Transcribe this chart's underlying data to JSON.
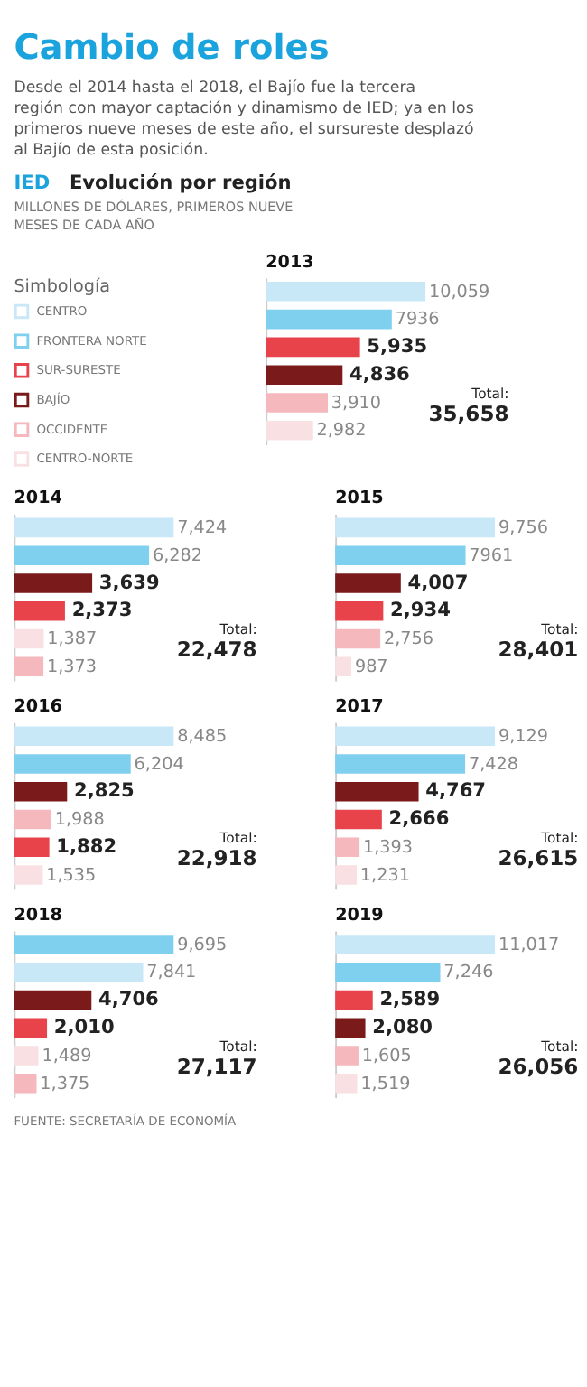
{
  "chart_data": [
    {
      "type": "other",
      "title": "Cambio de roles",
      "subtitle": "Desde el 2014 hasta el 2018, el Bajío fue la tercera región con mayor captación y dinamismo de IED; ya en los primeros nueve meses de este año, el sursureste desplazó al Bajío de esta posición.",
      "annotations": [
        "IED",
        "Evolución por región",
        "MILLONES DE DÓLARES, PRIMEROS NUEVE MESES DE CADA AÑO"
      ]
    },
    {
      "type": "other",
      "legend": "left",
      "legend_title": "Simbología",
      "series": [
        {
          "name": "CENTRO",
          "color": "#c9e8f7"
        },
        {
          "name": "FRONTERA NORTE",
          "color": "#7fd0ef"
        },
        {
          "name": "SUR-SURESTE",
          "color": "#e8434a"
        },
        {
          "name": "BAJÍO",
          "color": "#7a1a1a"
        },
        {
          "name": "OCCIDENTE",
          "color": "#f4b8bd"
        },
        {
          "name": "CENTRO-NORTE",
          "color": "#f9e1e3"
        }
      ]
    },
    {
      "type": "bar",
      "orientation": "horizontal",
      "title": "2013",
      "categories": [
        null,
        null,
        null,
        null,
        null,
        null
      ],
      "values": [
        10059,
        7936,
        5935,
        4836,
        3910,
        2982
      ],
      "value_labels": [
        "10,059",
        "7936",
        "5,935",
        "4,836",
        "3,910",
        "2,982"
      ],
      "colors": [
        "#c9e8f7",
        "#7fd0ef",
        "#e8434a",
        "#7a1a1a",
        "#f4b8bd",
        "#f9e1e3"
      ],
      "annotations": [
        "Total:",
        "35,658"
      ]
    },
    {
      "type": "bar",
      "orientation": "horizontal",
      "title": "2014",
      "categories": [
        null,
        null,
        null,
        null,
        null,
        null
      ],
      "values": [
        7424,
        6282,
        3639,
        2373,
        1387,
        1373
      ],
      "value_labels": [
        "7,424",
        "6,282",
        "3,639",
        "2,373",
        "1,387",
        "1,373"
      ],
      "colors": [
        "#c9e8f7",
        "#7fd0ef",
        "#7a1a1a",
        "#e8434a",
        "#f9e1e3",
        "#f4b8bd"
      ],
      "annotations": [
        "Total:",
        "22,478"
      ]
    },
    {
      "type": "bar",
      "orientation": "horizontal",
      "title": "2015",
      "categories": [
        null,
        null,
        null,
        null,
        null,
        null
      ],
      "values": [
        9756,
        7961,
        4007,
        2934,
        2756,
        987
      ],
      "value_labels": [
        "9,756",
        "7961",
        "4,007",
        "2,934",
        "2,756",
        "987"
      ],
      "colors": [
        "#c9e8f7",
        "#7fd0ef",
        "#7a1a1a",
        "#e8434a",
        "#f4b8bd",
        "#f9e1e3"
      ],
      "annotations": [
        "Total:",
        "28,401"
      ]
    },
    {
      "type": "bar",
      "orientation": "horizontal",
      "title": "2016",
      "categories": [
        null,
        null,
        null,
        null,
        null,
        null
      ],
      "values": [
        8485,
        6204,
        2825,
        1988,
        1882,
        1535
      ],
      "value_labels": [
        "8,485",
        "6,204",
        "2,825",
        "1,988",
        "1,882",
        "1,535"
      ],
      "colors": [
        "#c9e8f7",
        "#7fd0ef",
        "#7a1a1a",
        "#f4b8bd",
        "#e8434a",
        "#f9e1e3"
      ],
      "annotations": [
        "Total:",
        "22,918"
      ]
    },
    {
      "type": "bar",
      "orientation": "horizontal",
      "title": "2017",
      "categories": [
        null,
        null,
        null,
        null,
        null,
        null
      ],
      "values": [
        9129,
        7428,
        4767,
        2666,
        1393,
        1231
      ],
      "value_labels": [
        "9,129",
        "7,428",
        "4,767",
        "2,666",
        "1,393",
        "1,231"
      ],
      "colors": [
        "#c9e8f7",
        "#7fd0ef",
        "#7a1a1a",
        "#e8434a",
        "#f4b8bd",
        "#f9e1e3"
      ],
      "annotations": [
        "Total:",
        "26,615"
      ]
    },
    {
      "type": "bar",
      "orientation": "horizontal",
      "title": "2018",
      "categories": [
        null,
        null,
        null,
        null,
        null,
        null
      ],
      "values": [
        9695,
        7841,
        4706,
        2010,
        1489,
        1375
      ],
      "value_labels": [
        "9,695",
        "7,841",
        "4,706",
        "2,010",
        "1,489",
        "1,375"
      ],
      "colors": [
        "#7fd0ef",
        "#c9e8f7",
        "#7a1a1a",
        "#e8434a",
        "#f9e1e3",
        "#f4b8bd"
      ],
      "annotations": [
        "Total:",
        "27,117"
      ]
    },
    {
      "type": "bar",
      "orientation": "horizontal",
      "title": "2019",
      "categories": [
        null,
        null,
        null,
        null,
        null,
        null
      ],
      "values": [
        11017,
        7246,
        2589,
        2080,
        1605,
        1519
      ],
      "value_labels": [
        "11,017",
        "7,246",
        "2,589",
        "2,080",
        "1,605",
        "1,519"
      ],
      "colors": [
        "#c9e8f7",
        "#7fd0ef",
        "#e8434a",
        "#7a1a1a",
        "#f4b8bd",
        "#f9e1e3"
      ],
      "annotations": [
        "Total:",
        "26,056"
      ]
    },
    {
      "type": "other",
      "annotations": [
        "FUENTE: SECRETARÍA DE ECONOMÍA"
      ]
    }
  ]
}
